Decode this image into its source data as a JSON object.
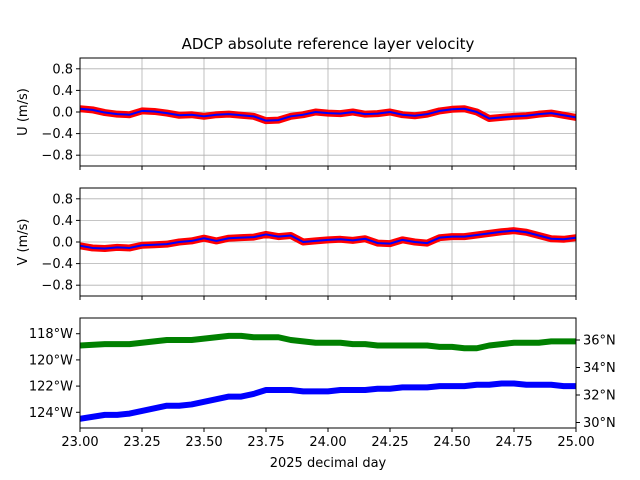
{
  "chart_data": {
    "type": "line",
    "title": "ADCP absolute reference layer velocity",
    "xlabel": "2025 decimal day",
    "xlim": [
      23.0,
      25.0
    ],
    "xticks": [
      "23.00",
      "23.25",
      "23.50",
      "23.75",
      "24.00",
      "24.25",
      "24.50",
      "24.75",
      "25.00"
    ],
    "panels": [
      {
        "ylabel": "U (m/s)",
        "ylim": [
          -1.0,
          1.0
        ],
        "yticks": [
          "0.8",
          "0.4",
          "0.0",
          "−0.4",
          "−0.8"
        ],
        "grid": true,
        "series": [
          {
            "color": "#ff0000",
            "style": "markers",
            "x": [
              23.0,
              23.05,
              23.1,
              23.15,
              23.2,
              23.25,
              23.3,
              23.35,
              23.4,
              23.45,
              23.5,
              23.55,
              23.6,
              23.65,
              23.7,
              23.75,
              23.8,
              23.85,
              23.9,
              23.95,
              24.0,
              24.05,
              24.1,
              24.15,
              24.2,
              24.25,
              24.3,
              24.35,
              24.4,
              24.45,
              24.5,
              24.55,
              24.6,
              24.65,
              24.7,
              24.75,
              24.8,
              24.85,
              24.9,
              24.95,
              25.0
            ],
            "values": [
              0.06,
              0.04,
              -0.01,
              -0.04,
              -0.05,
              0.02,
              0.01,
              -0.02,
              -0.06,
              -0.05,
              -0.08,
              -0.05,
              -0.04,
              -0.06,
              -0.08,
              -0.16,
              -0.15,
              -0.08,
              -0.05,
              0.0,
              -0.02,
              -0.03,
              0.0,
              -0.04,
              -0.03,
              0.0,
              -0.05,
              -0.07,
              -0.04,
              0.02,
              0.05,
              0.06,
              0.0,
              -0.12,
              -0.1,
              -0.08,
              -0.07,
              -0.04,
              -0.02,
              -0.06,
              -0.1
            ]
          },
          {
            "color": "#0000ff",
            "style": "line",
            "x": [
              23.0,
              23.05,
              23.1,
              23.15,
              23.2,
              23.25,
              23.3,
              23.35,
              23.4,
              23.45,
              23.5,
              23.55,
              23.6,
              23.65,
              23.7,
              23.75,
              23.8,
              23.85,
              23.9,
              23.95,
              24.0,
              24.05,
              24.1,
              24.15,
              24.2,
              24.25,
              24.3,
              24.35,
              24.4,
              24.45,
              24.5,
              24.55,
              24.6,
              24.65,
              24.7,
              24.75,
              24.8,
              24.85,
              24.9,
              24.95,
              25.0
            ],
            "values": [
              0.06,
              0.04,
              -0.01,
              -0.04,
              -0.05,
              0.02,
              0.01,
              -0.02,
              -0.06,
              -0.05,
              -0.08,
              -0.05,
              -0.04,
              -0.06,
              -0.08,
              -0.16,
              -0.15,
              -0.08,
              -0.05,
              0.0,
              -0.02,
              -0.03,
              0.0,
              -0.04,
              -0.03,
              0.0,
              -0.05,
              -0.07,
              -0.04,
              0.02,
              0.05,
              0.06,
              0.0,
              -0.12,
              -0.1,
              -0.08,
              -0.07,
              -0.04,
              -0.02,
              -0.06,
              -0.1
            ]
          }
        ]
      },
      {
        "ylabel": "V (m/s)",
        "ylim": [
          -1.0,
          1.0
        ],
        "yticks": [
          "0.8",
          "0.4",
          "0.0",
          "−0.4",
          "−0.8"
        ],
        "grid": true,
        "series": [
          {
            "color": "#ff0000",
            "style": "markers",
            "x": [
              23.0,
              23.05,
              23.1,
              23.15,
              23.2,
              23.25,
              23.3,
              23.35,
              23.4,
              23.45,
              23.5,
              23.55,
              23.6,
              23.65,
              23.7,
              23.75,
              23.8,
              23.85,
              23.9,
              23.95,
              24.0,
              24.05,
              24.1,
              24.15,
              24.2,
              24.25,
              24.3,
              24.35,
              24.4,
              24.45,
              24.5,
              24.55,
              24.6,
              24.65,
              24.7,
              24.75,
              24.8,
              24.85,
              24.9,
              24.95,
              25.0
            ],
            "values": [
              -0.07,
              -0.11,
              -0.12,
              -0.1,
              -0.11,
              -0.06,
              -0.05,
              -0.04,
              0.0,
              0.02,
              0.07,
              0.02,
              0.07,
              0.08,
              0.09,
              0.14,
              0.1,
              0.12,
              0.0,
              0.02,
              0.04,
              0.05,
              0.03,
              0.06,
              -0.02,
              -0.03,
              0.04,
              0.0,
              -0.02,
              0.08,
              0.1,
              0.1,
              0.13,
              0.16,
              0.19,
              0.21,
              0.18,
              0.12,
              0.06,
              0.05,
              0.08
            ]
          },
          {
            "color": "#0000ff",
            "style": "line",
            "x": [
              23.0,
              23.05,
              23.1,
              23.15,
              23.2,
              23.25,
              23.3,
              23.35,
              23.4,
              23.45,
              23.5,
              23.55,
              23.6,
              23.65,
              23.7,
              23.75,
              23.8,
              23.85,
              23.9,
              23.95,
              24.0,
              24.05,
              24.1,
              24.15,
              24.2,
              24.25,
              24.3,
              24.35,
              24.4,
              24.45,
              24.5,
              24.55,
              24.6,
              24.65,
              24.7,
              24.75,
              24.8,
              24.85,
              24.9,
              24.95,
              25.0
            ],
            "values": [
              -0.07,
              -0.11,
              -0.12,
              -0.1,
              -0.11,
              -0.06,
              -0.05,
              -0.04,
              0.0,
              0.02,
              0.07,
              0.02,
              0.07,
              0.08,
              0.09,
              0.14,
              0.1,
              0.12,
              0.0,
              0.02,
              0.04,
              0.05,
              0.03,
              0.06,
              -0.02,
              -0.03,
              0.04,
              0.0,
              -0.02,
              0.08,
              0.1,
              0.1,
              0.13,
              0.16,
              0.19,
              0.21,
              0.18,
              0.12,
              0.06,
              0.05,
              0.08
            ]
          }
        ]
      },
      {
        "ylabel": "",
        "ylim": [
          -125.2,
          -116.8
        ],
        "yticks": [
          "118°W",
          "120°W",
          "122°W",
          "124°W"
        ],
        "ytick_color": "#0000ff",
        "y2lim": [
          29.6,
          37.6
        ],
        "y2ticks": [
          "36°N",
          "34°N",
          "32°N",
          "30°N"
        ],
        "y2tick_color": "#008000",
        "grid": false,
        "series": [
          {
            "color": "#0000ff",
            "axis": "left",
            "style": "thick",
            "x": [
              23.0,
              23.1,
              23.15,
              23.2,
              23.25,
              23.3,
              23.35,
              23.4,
              23.45,
              23.5,
              23.55,
              23.6,
              23.65,
              23.7,
              23.75,
              23.8,
              23.85,
              23.9,
              23.95,
              24.0,
              24.05,
              24.1,
              24.15,
              24.2,
              24.25,
              24.3,
              24.35,
              24.4,
              24.45,
              24.5,
              24.55,
              24.6,
              24.65,
              24.7,
              24.75,
              24.8,
              24.85,
              24.9,
              24.95,
              25.0
            ],
            "values": [
              -124.5,
              -124.2,
              -124.2,
              -124.1,
              -123.9,
              -123.7,
              -123.5,
              -123.5,
              -123.4,
              -123.2,
              -123.0,
              -122.8,
              -122.8,
              -122.6,
              -122.3,
              -122.3,
              -122.3,
              -122.4,
              -122.4,
              -122.4,
              -122.3,
              -122.3,
              -122.3,
              -122.2,
              -122.2,
              -122.1,
              -122.1,
              -122.1,
              -122.0,
              -122.0,
              -122.0,
              -121.9,
              -121.9,
              -121.8,
              -121.8,
              -121.9,
              -121.9,
              -121.9,
              -122.0,
              -122.0
            ]
          },
          {
            "color": "#008000",
            "axis": "right",
            "style": "thick",
            "x": [
              23.0,
              23.1,
              23.2,
              23.25,
              23.3,
              23.35,
              23.4,
              23.45,
              23.5,
              23.55,
              23.6,
              23.65,
              23.7,
              23.75,
              23.8,
              23.85,
              23.9,
              23.95,
              24.0,
              24.05,
              24.1,
              24.15,
              24.2,
              24.25,
              24.3,
              24.35,
              24.4,
              24.45,
              24.5,
              24.55,
              24.6,
              24.65,
              24.7,
              24.75,
              24.8,
              24.85,
              24.9,
              24.95,
              25.0
            ],
            "values": [
              35.6,
              35.7,
              35.7,
              35.8,
              35.9,
              36.0,
              36.0,
              36.0,
              36.1,
              36.2,
              36.3,
              36.3,
              36.2,
              36.2,
              36.2,
              36.0,
              35.9,
              35.8,
              35.8,
              35.8,
              35.7,
              35.7,
              35.6,
              35.6,
              35.6,
              35.6,
              35.6,
              35.5,
              35.5,
              35.4,
              35.4,
              35.6,
              35.7,
              35.8,
              35.8,
              35.8,
              35.9,
              35.9,
              35.9
            ]
          }
        ]
      }
    ]
  }
}
